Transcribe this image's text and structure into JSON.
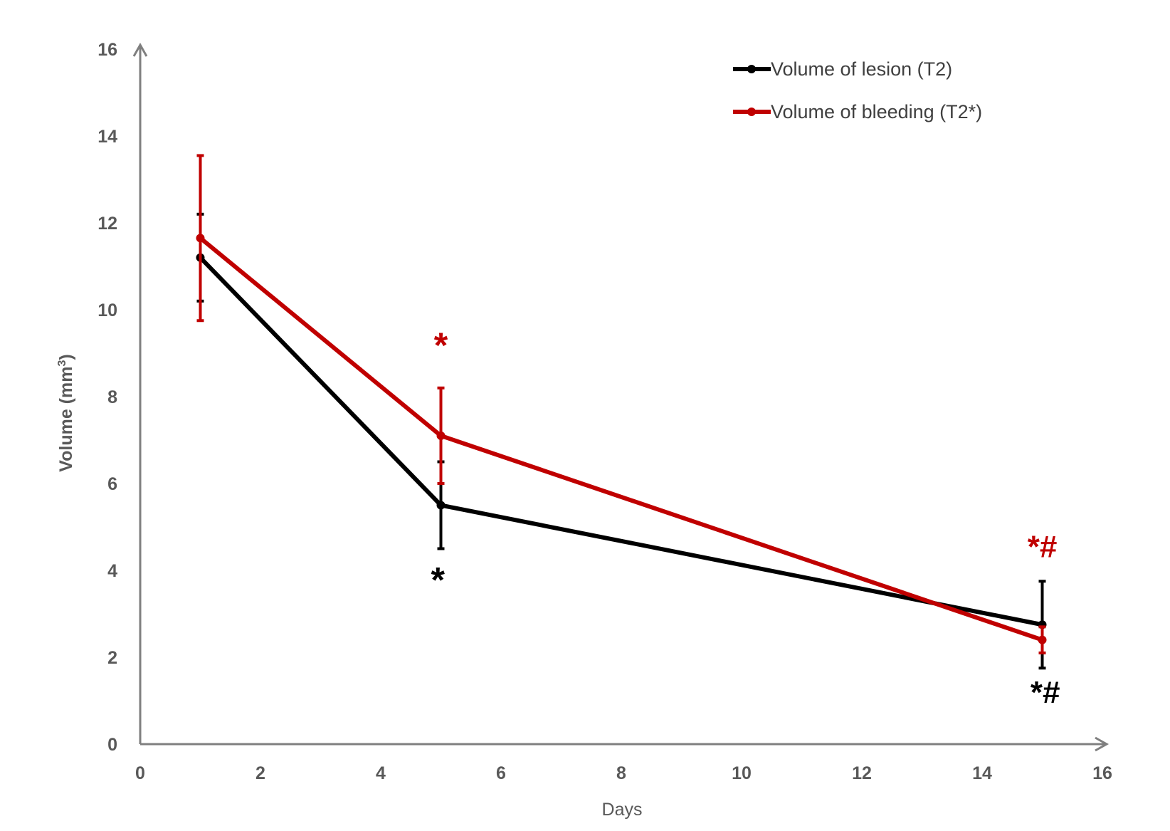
{
  "chart_data": {
    "type": "line",
    "xlabel": "Days",
    "ylabel_main": "Volume (mm",
    "ylabel_sup": "3",
    "ylabel_close": ")",
    "xlim": [
      0,
      16
    ],
    "ylim": [
      0,
      16
    ],
    "x_ticks": [
      0,
      2,
      4,
      6,
      8,
      10,
      12,
      14,
      16
    ],
    "y_ticks": [
      0,
      2,
      4,
      6,
      8,
      10,
      12,
      14,
      16
    ],
    "grid": false,
    "legend_position": "top-right",
    "series": [
      {
        "name": "Volume of lesion (T2)",
        "color": "#000000",
        "x": [
          1,
          5,
          15
        ],
        "y": [
          11.2,
          5.5,
          2.75
        ],
        "error": [
          1.0,
          1.0,
          1.0
        ]
      },
      {
        "name": "Volume of bleeding (T2*)",
        "color": "#c00000",
        "x": [
          1,
          5,
          15
        ],
        "y": [
          11.65,
          7.1,
          2.4
        ],
        "error": [
          1.9,
          1.1,
          0.3
        ]
      }
    ],
    "annotations": [
      {
        "text": "*",
        "color": "#c00000",
        "x": 5,
        "y": 8.9,
        "size": 50
      },
      {
        "text": "*",
        "color": "#000000",
        "x": 4.95,
        "y": 3.5,
        "size": 50
      },
      {
        "text": "*#",
        "color": "#c00000",
        "x": 15,
        "y": 4.3,
        "size": 44
      },
      {
        "text": "*#",
        "color": "#000000",
        "x": 15.05,
        "y": 0.95,
        "size": 44
      }
    ]
  }
}
